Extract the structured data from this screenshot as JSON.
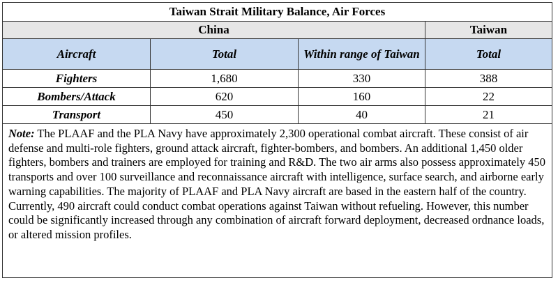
{
  "title": "Taiwan Strait Military Balance, Air Forces",
  "groups": {
    "china": "China",
    "taiwan": "Taiwan"
  },
  "columns": {
    "aircraft": "Aircraft",
    "china_total": "Total",
    "within_range": "Within range of Taiwan",
    "taiwan_total": "Total"
  },
  "rows": [
    {
      "label": "Fighters",
      "china_total": "1,680",
      "within_range": "330",
      "taiwan_total": "388"
    },
    {
      "label": "Bombers/Attack",
      "china_total": "620",
      "within_range": "160",
      "taiwan_total": "22"
    },
    {
      "label": "Transport",
      "china_total": "450",
      "within_range": "40",
      "taiwan_total": "21"
    }
  ],
  "note": {
    "label": "Note:",
    "text": "The PLAAF and the PLA Navy have approximately 2,300 operational combat aircraft. These consist of air defense and multi-role fighters, ground attack aircraft, fighter-bombers, and bombers. An additional 1,450 older fighters, bombers and trainers are employed for training and R&D. The two air arms also possess approximately 450 transports and over 100 surveillance and reconnaissance aircraft with intelligence, surface search, and airborne early warning capabilities. The majority of PLAAF and PLA Navy aircraft are based in the eastern half of the country. Currently, 490 aircraft could conduct combat operations against Taiwan without refueling. However, this number could be significantly increased through any combination of aircraft forward deployment, decreased ordnance loads, or altered mission profiles."
  }
}
